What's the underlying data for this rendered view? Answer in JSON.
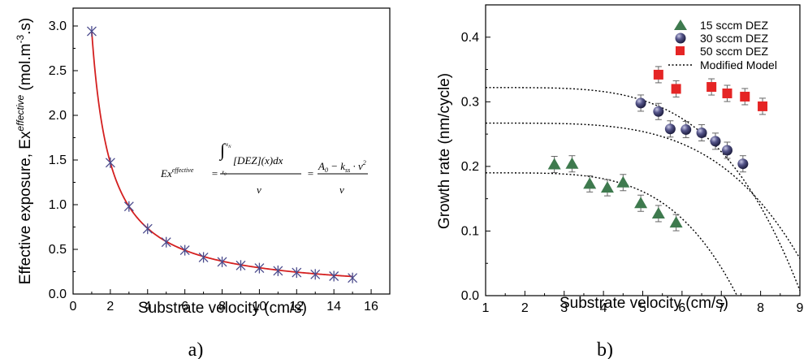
{
  "chart_data": [
    {
      "type": "scatter",
      "panel_label": "a)",
      "xlabel": "Substrate velocity (cm/s)",
      "ylabel": "Effective exposure, Ex",
      "ylabel_sup": "effective",
      "ylabel_unit": " (mol.m",
      "ylabel_unit_sup": "-3",
      "ylabel_unit_end": ".s)",
      "xlim": [
        0,
        17
      ],
      "ylim": [
        0,
        3.2
      ],
      "xticks": [
        0,
        2,
        4,
        6,
        8,
        10,
        12,
        14,
        16
      ],
      "xtick_labels": [
        "0",
        "2",
        "4",
        "6",
        "8",
        "10",
        "12",
        "14",
        "16"
      ],
      "yticks": [
        0,
        0.5,
        1.0,
        1.5,
        2.0,
        2.5,
        3.0
      ],
      "ytick_labels": [
        "0.0",
        "0.5",
        "1.0",
        "1.5",
        "2.0",
        "2.5",
        "3.0"
      ],
      "series": [
        {
          "marker": "asterisk",
          "color": "#4a4a8c",
          "x": [
            1,
            2,
            3,
            4,
            5,
            6,
            7,
            8,
            9,
            10,
            11,
            12,
            13,
            14,
            15
          ],
          "y": [
            2.94,
            1.47,
            0.98,
            0.73,
            0.58,
            0.49,
            0.41,
            0.36,
            0.32,
            0.29,
            0.26,
            0.24,
            0.22,
            0.2,
            0.18
          ]
        }
      ],
      "fit_curve": {
        "color": "#d42020",
        "x_range": [
          1,
          15
        ]
      },
      "equation": {
        "lhs": "Ex",
        "lhs_sup": "effective",
        "eq1": "=",
        "int_upper": "x",
        "int_upper_sub": "N",
        "int_lower": "x",
        "int_lower_sub": "0",
        "integrand": "[DEZ](x)dx",
        "den1": "v",
        "eq2": "=",
        "num2": "A",
        "num2_sub": "0",
        "num2_rest": " − k",
        "num2_ss": "ss",
        "num2_end": " · v",
        "num2_pow": "2",
        "den2": "v"
      }
    },
    {
      "type": "scatter",
      "panel_label": "b)",
      "xlabel": "Substrate velocity (cm/s)",
      "ylabel": "Growth rate (nm/cycle)",
      "xlim": [
        1,
        9
      ],
      "ylim": [
        0,
        0.45
      ],
      "xticks": [
        1,
        2,
        3,
        4,
        5,
        6,
        7,
        8,
        9
      ],
      "xtick_labels": [
        "1",
        "2",
        "3",
        "4",
        "5",
        "6",
        "7",
        "8",
        "9"
      ],
      "yticks": [
        0,
        0.1,
        0.2,
        0.3,
        0.4
      ],
      "ytick_labels": [
        "0.0",
        "0.1",
        "0.2",
        "0.3",
        "0.4"
      ],
      "legend_position": "top-right",
      "series": [
        {
          "name": "15 sccm DEZ",
          "marker": "triangle",
          "color": "#3e7a4e",
          "x": [
            2.75,
            3.2,
            3.65,
            4.1,
            4.5,
            4.95,
            5.4,
            5.85
          ],
          "y": [
            0.203,
            0.204,
            0.173,
            0.167,
            0.175,
            0.143,
            0.127,
            0.113
          ]
        },
        {
          "name": "30 sccm DEZ",
          "marker": "sphere",
          "color": "#2e2e60",
          "x": [
            4.95,
            5.4,
            5.7,
            6.1,
            6.5,
            6.85,
            7.15,
            7.55
          ],
          "y": [
            0.298,
            0.285,
            0.258,
            0.257,
            0.252,
            0.239,
            0.225,
            0.204
          ]
        },
        {
          "name": "50 sccm DEZ",
          "marker": "square",
          "color": "#e52525",
          "x": [
            5.4,
            5.85,
            6.75,
            7.15,
            7.6,
            8.05
          ],
          "y": [
            0.342,
            0.32,
            0.323,
            0.313,
            0.308,
            0.293
          ]
        }
      ],
      "model_curves": {
        "name": "Modified Model",
        "style": "dotted",
        "color": "#000000",
        "curves": [
          {
            "y0": 0.19,
            "x_zero": 7.4
          },
          {
            "y0": 0.267,
            "x_zero": 9.5
          },
          {
            "y0": 0.322,
            "x_zero": 9.05
          }
        ]
      }
    }
  ]
}
